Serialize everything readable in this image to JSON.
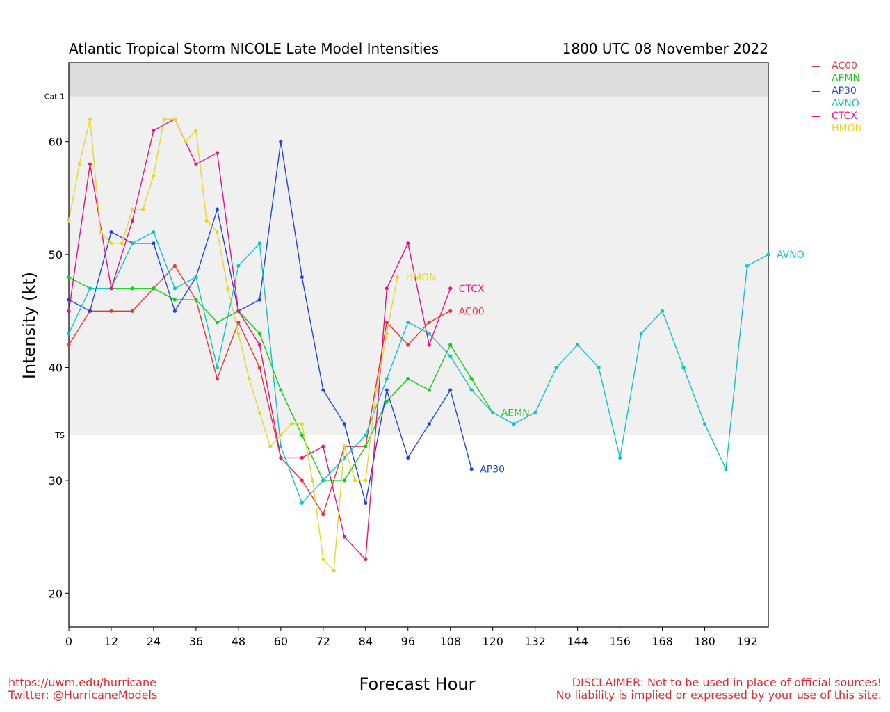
{
  "header": {
    "title": "Atlantic Tropical Storm NICOLE Late Model Intensities",
    "datetime": "1800 UTC 08 November 2022"
  },
  "footer": {
    "url": "https://uwm.edu/hurricane",
    "twitter": "Twitter: @HurricaneModels",
    "disclaimer_1": "DISCLAIMER: Not to be used in place of official sources!",
    "disclaimer_2": "No liability is implied or expressed by your use of this site."
  },
  "chart_data": {
    "type": "line",
    "title": "Atlantic Tropical Storm NICOLE Late Model Intensities",
    "xlabel": "Forecast Hour",
    "ylabel": "Intensity (kt)",
    "xlim": [
      0,
      198
    ],
    "ylim": [
      17,
      67
    ],
    "xticks": [
      0,
      12,
      24,
      36,
      48,
      60,
      72,
      84,
      96,
      108,
      120,
      132,
      144,
      156,
      168,
      180,
      192
    ],
    "yticks": [
      20,
      30,
      40,
      50,
      60
    ],
    "bands": [
      {
        "label": "TS",
        "from": 34,
        "to": 64,
        "color": "#f0f0f0"
      },
      {
        "label": "Cat 1",
        "from": 64,
        "to": 67,
        "color": "#dcdcdc"
      }
    ],
    "legend_position": "right",
    "series": [
      {
        "name": "AC00",
        "color": "#ee3333",
        "x": [
          0,
          6,
          12,
          18,
          24,
          30,
          36,
          42,
          48,
          54,
          60,
          66,
          72,
          78,
          84,
          90,
          96,
          102,
          108
        ],
        "y": [
          42,
          45,
          45,
          45,
          47,
          49,
          46,
          39,
          44,
          40,
          32,
          30,
          27,
          33,
          33,
          44,
          42,
          44,
          45
        ]
      },
      {
        "name": "AEMN",
        "color": "#11cc11",
        "x": [
          0,
          6,
          12,
          18,
          24,
          30,
          36,
          42,
          48,
          54,
          60,
          66,
          72,
          78,
          84,
          90,
          96,
          102,
          108,
          114,
          120
        ],
        "y": [
          48,
          47,
          47,
          47,
          47,
          46,
          46,
          44,
          45,
          43,
          38,
          34,
          30,
          30,
          33,
          37,
          39,
          38,
          42,
          39,
          36
        ]
      },
      {
        "name": "AP30",
        "color": "#2244dd",
        "x": [
          0,
          6,
          12,
          18,
          24,
          30,
          36,
          42,
          48,
          54,
          60,
          66,
          72,
          78,
          84,
          90,
          96,
          102,
          108,
          114
        ],
        "y": [
          46,
          45,
          52,
          51,
          51,
          45,
          48,
          54,
          45,
          46,
          60,
          48,
          38,
          35,
          28,
          38,
          32,
          35,
          38,
          31
        ]
      },
      {
        "name": "AVNO",
        "color": "#11c4c4",
        "x": [
          0,
          6,
          12,
          18,
          24,
          30,
          36,
          42,
          48,
          54,
          60,
          66,
          72,
          78,
          84,
          90,
          96,
          102,
          108,
          114,
          120,
          126,
          132,
          138,
          144,
          150,
          156,
          162,
          168,
          174,
          180,
          186,
          192,
          198
        ],
        "y": [
          43,
          47,
          47,
          51,
          52,
          47,
          48,
          40,
          49,
          51,
          33,
          28,
          30,
          32,
          34,
          39,
          44,
          43,
          41,
          38,
          36,
          35,
          36,
          40,
          42,
          40,
          32,
          43,
          45,
          40,
          35,
          31,
          49,
          50
        ]
      },
      {
        "name": "CTCX",
        "color": "#ee1177",
        "x": [
          0,
          6,
          12,
          18,
          24,
          30,
          36,
          42,
          48,
          54,
          60,
          66,
          72,
          78,
          84,
          90,
          96,
          102,
          108
        ],
        "y": [
          45,
          58,
          47,
          53,
          61,
          62,
          58,
          59,
          45,
          42,
          32,
          32,
          33,
          25,
          23,
          47,
          51,
          42,
          47
        ]
      },
      {
        "name": "HMON",
        "color": "#e6d531",
        "x": [
          0,
          3,
          6,
          9,
          12,
          15,
          18,
          21,
          24,
          27,
          30,
          33,
          36,
          39,
          42,
          45,
          48,
          51,
          54,
          57,
          60,
          63,
          66,
          69,
          72,
          75,
          78,
          81,
          84,
          87,
          90,
          93
        ],
        "y": [
          53,
          58,
          62,
          52,
          51,
          51,
          54,
          54,
          57,
          62,
          62,
          60,
          61,
          53,
          52,
          47,
          43,
          39,
          36,
          33,
          34,
          35,
          35,
          30,
          23,
          22,
          33,
          30,
          30,
          38,
          43,
          48
        ]
      }
    ]
  }
}
